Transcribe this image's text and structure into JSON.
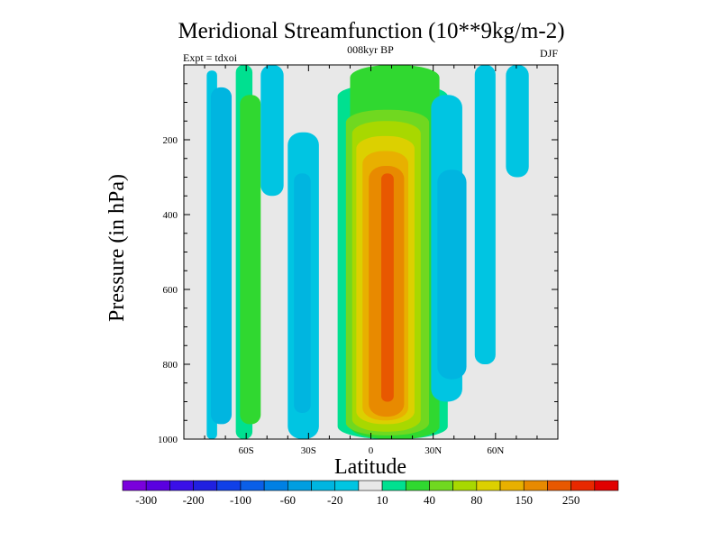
{
  "chart_data": {
    "type": "contour",
    "title": "Meridional Streamfunction (10**9kg/m-2)",
    "subtitle_center": "008kyr BP",
    "subtitle_left": "Expt = tdxoi",
    "subtitle_right": "DJF",
    "xlabel": "Latitude",
    "ylabel": "Pressure (in hPa)",
    "xlim": [
      -90,
      90
    ],
    "ylim": [
      1000,
      0
    ],
    "x_tick_labels": [
      {
        "value": -60,
        "label": "60S"
      },
      {
        "value": -30,
        "label": "30S"
      },
      {
        "value": 0,
        "label": "0"
      },
      {
        "value": 30,
        "label": "30N"
      },
      {
        "value": 60,
        "label": "60N"
      }
    ],
    "y_tick_labels": [
      {
        "value": 200,
        "label": "200"
      },
      {
        "value": 400,
        "label": "400"
      },
      {
        "value": 600,
        "label": "600"
      },
      {
        "value": 800,
        "label": "800"
      },
      {
        "value": 1000,
        "label": "1000"
      }
    ],
    "colorbar": {
      "levels": [
        -300,
        -250,
        -200,
        -150,
        -100,
        -80,
        -60,
        -40,
        -20,
        -10,
        10,
        20,
        40,
        60,
        80,
        100,
        150,
        200,
        250,
        300
      ],
      "labels": [
        "-300",
        "-200",
        "-100",
        "-60",
        "-20",
        "10",
        "40",
        "80",
        "150",
        "250"
      ],
      "colors": [
        "#7a00dc",
        "#5a00e0",
        "#3a10e8",
        "#2020e0",
        "#1040e8",
        "#0a5fe8",
        "#0080e4",
        "#009ee0",
        "#00b5e0",
        "#00c5e2",
        "#e8e8e8",
        "#00e090",
        "#30d830",
        "#70d820",
        "#a8d800",
        "#dcd000",
        "#e8b000",
        "#e88a00",
        "#e85800",
        "#e82800",
        "#e00000"
      ]
    },
    "background_color": "#e8e8e8",
    "cells": [
      {
        "lat": [
          -79,
          -74
        ],
        "p": [
          15,
          1000
        ],
        "level": -20
      },
      {
        "lat": [
          -77,
          -67
        ],
        "p": [
          60,
          960
        ],
        "level": -40
      },
      {
        "lat": [
          -65,
          -57
        ],
        "p": [
          0,
          1000
        ],
        "level": 10
      },
      {
        "lat": [
          -63,
          -53
        ],
        "p": [
          80,
          960
        ],
        "level": 20
      },
      {
        "lat": [
          -53,
          -42
        ],
        "p": [
          0,
          350
        ],
        "level": -20
      },
      {
        "lat": [
          -40,
          -25
        ],
        "p": [
          180,
          1000
        ],
        "level": -20
      },
      {
        "lat": [
          -37,
          -29
        ],
        "p": [
          290,
          930
        ],
        "level": -40
      },
      {
        "lat": [
          -16,
          37
        ],
        "p": [
          50,
          1000
        ],
        "level": 10
      },
      {
        "lat": [
          -10,
          33
        ],
        "p": [
          0,
          1000
        ],
        "level": 20
      },
      {
        "lat": [
          -12,
          28
        ],
        "p": [
          120,
          990
        ],
        "level": 40
      },
      {
        "lat": [
          -9,
          24
        ],
        "p": [
          150,
          980
        ],
        "level": 60
      },
      {
        "lat": [
          -7,
          21
        ],
        "p": [
          190,
          960
        ],
        "level": 80
      },
      {
        "lat": [
          -4,
          18
        ],
        "p": [
          230,
          950
        ],
        "level": 100
      },
      {
        "lat": [
          -1,
          16
        ],
        "p": [
          270,
          940
        ],
        "level": 150
      },
      {
        "lat": [
          5,
          11
        ],
        "p": [
          290,
          900
        ],
        "level": 200
      },
      {
        "lat": [
          29,
          44
        ],
        "p": [
          80,
          900
        ],
        "level": -20
      },
      {
        "lat": [
          32,
          46
        ],
        "p": [
          280,
          840
        ],
        "level": -40
      },
      {
        "lat": [
          50,
          60
        ],
        "p": [
          0,
          800
        ],
        "level": -20
      },
      {
        "lat": [
          65,
          76
        ],
        "p": [
          0,
          300
        ],
        "level": -20
      }
    ]
  }
}
